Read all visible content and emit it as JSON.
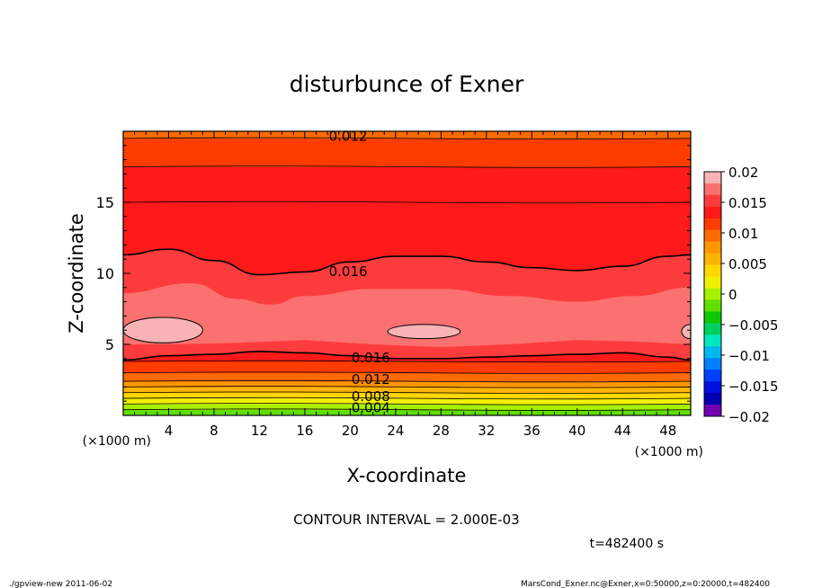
{
  "chart_data": {
    "type": "heatmap",
    "title": "disturbunce of Exner",
    "xlabel": "X-coordinate",
    "ylabel": "Z-coordinate",
    "x_unit": "(×1000 m)",
    "y_unit": "(×1000 m)",
    "xlim": [
      0,
      50
    ],
    "ylim": [
      0,
      20
    ],
    "x_ticks": [
      4,
      8,
      12,
      16,
      20,
      24,
      28,
      32,
      36,
      40,
      44,
      48
    ],
    "y_ticks": [
      5,
      10,
      15
    ],
    "colorbar": {
      "levels": [
        0.02,
        0.015,
        0.01,
        0.005,
        0,
        -0.005,
        -0.01,
        -0.015,
        -0.02
      ],
      "labels": [
        "0.02",
        "0.015",
        "0.01",
        "0.005",
        "0",
        "−0.005",
        "−0.01",
        "−0.015",
        "−0.02"
      ],
      "colors": [
        "#f8b4b4",
        "#fb7070",
        "#fc3c3c",
        "#ff1a1a",
        "#ff3c00",
        "#ff6a00",
        "#ff9600",
        "#ffb400",
        "#ffd800",
        "#f0f000",
        "#a8f000",
        "#60e000",
        "#10c800",
        "#00d060",
        "#00e8c0",
        "#00b8f0",
        "#0080ff",
        "#0040ff",
        "#0010e0",
        "#0000b0",
        "#7000b0"
      ]
    },
    "layers": [
      {
        "zmin": 0.0,
        "zmax": 0.4,
        "value": 0.002,
        "color": "#60e000"
      },
      {
        "zmin": 0.4,
        "zmax": 0.8,
        "value": 0.004,
        "color": "#a8f000"
      },
      {
        "zmin": 0.8,
        "zmax": 1.2,
        "value": 0.006,
        "color": "#f0f000"
      },
      {
        "zmin": 1.2,
        "zmax": 1.6,
        "value": 0.008,
        "color": "#ffd800"
      },
      {
        "zmin": 1.6,
        "zmax": 2.0,
        "value": 0.009,
        "color": "#ffb400"
      },
      {
        "zmin": 2.0,
        "zmax": 2.4,
        "value": 0.01,
        "color": "#ff9600"
      },
      {
        "zmin": 2.4,
        "zmax": 3.0,
        "value": 0.012,
        "color": "#ff6a00"
      },
      {
        "zmin": 3.0,
        "zmax": 3.8,
        "value": 0.014,
        "color": "#ff3c00"
      },
      {
        "zmin": 3.8,
        "zmax": 9.0,
        "value": 0.017,
        "color": "#ff1a1a"
      },
      {
        "zmin": 15.0,
        "zmax": 17.5,
        "value": 0.015,
        "color": "#ff1a1a"
      },
      {
        "zmin": 17.5,
        "zmax": 19.5,
        "value": 0.013,
        "color": "#ff3c00"
      },
      {
        "zmin": 19.5,
        "zmax": 20.0,
        "value": 0.012,
        "color": "#ff6a00"
      }
    ],
    "contour_labels": [
      {
        "text": "0.012",
        "x": 19.5,
        "z": 19.7
      },
      {
        "text": "0.016",
        "x": 19.5,
        "z": 10.2
      },
      {
        "text": "0.016",
        "x": 21.5,
        "z": 4.1
      },
      {
        "text": "0.012",
        "x": 21.5,
        "z": 2.6
      },
      {
        "text": "0.008",
        "x": 21.5,
        "z": 1.4
      },
      {
        "text": "0.004",
        "x": 21.5,
        "z": 0.6
      }
    ],
    "upper_016_contour": [
      [
        0,
        11.3
      ],
      [
        4,
        11.7
      ],
      [
        8,
        10.9
      ],
      [
        12,
        9.9
      ],
      [
        16,
        10.1
      ],
      [
        20,
        10.8
      ],
      [
        24,
        11.2
      ],
      [
        28,
        11.2
      ],
      [
        32,
        10.8
      ],
      [
        36,
        10.4
      ],
      [
        40,
        10.2
      ],
      [
        44,
        10.5
      ],
      [
        48,
        11.2
      ],
      [
        50,
        11.3
      ]
    ],
    "lower_016_contour": [
      [
        0,
        3.9
      ],
      [
        4,
        4.2
      ],
      [
        8,
        4.3
      ],
      [
        12,
        4.5
      ],
      [
        16,
        4.4
      ],
      [
        20,
        4.2
      ],
      [
        24,
        4.0
      ],
      [
        28,
        4.0
      ],
      [
        32,
        4.1
      ],
      [
        36,
        4.2
      ],
      [
        40,
        4.3
      ],
      [
        44,
        4.4
      ],
      [
        48,
        4.1
      ],
      [
        50,
        3.9
      ]
    ],
    "max_regions": [
      {
        "cx": 3.5,
        "cz": 6.0,
        "rx": 3.5,
        "rz": 0.9
      },
      {
        "cx": 26.5,
        "cz": 5.9,
        "rx": 3.2,
        "rz": 0.5
      },
      {
        "cx": 50.0,
        "cz": 5.9,
        "rx": 0.8,
        "rz": 0.5
      }
    ]
  },
  "contour_interval": "CONTOUR INTERVAL = 2.000E-03",
  "time_label": "t=482400 s",
  "footer_left": "./gpview-new   2011-06-02",
  "footer_right": "MarsCond_Exner.nc@Exner,x=0:50000,z=0:20000,t=482400"
}
